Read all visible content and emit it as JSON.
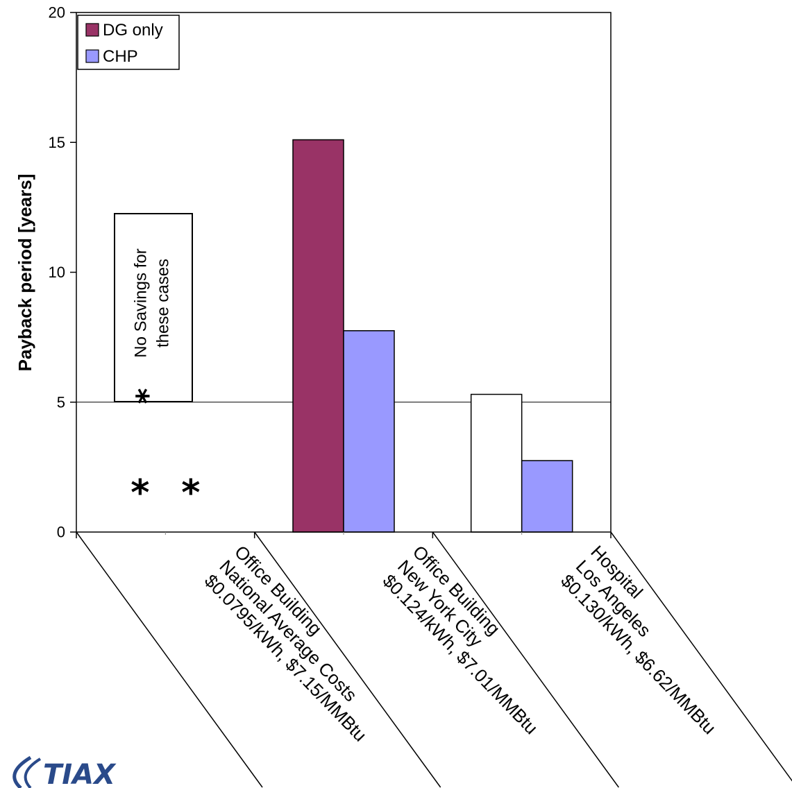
{
  "chart_data": {
    "type": "bar",
    "ylabel": "Payback period [years]",
    "ylim": [
      0,
      20
    ],
    "yticks": [
      0,
      5,
      10,
      15,
      20
    ],
    "grid": "major horizontal line at 5 only",
    "legend_position": "top-left",
    "categories": [
      [
        "Office Building",
        "National Average Costs",
        "$0.0795/kWh, $7.15/MMBtu"
      ],
      [
        "Office Building",
        "New York City",
        "$0.124/kWh, $7.01/MMBtu"
      ],
      [
        "Hospital",
        "Los Angeles",
        "$0.130/kWh, $6.62/MMBtu"
      ]
    ],
    "series": [
      {
        "name": "DG only",
        "color": "#993366",
        "values": [
          null,
          15.1,
          5.3
        ],
        "empty_fill_index": 2
      },
      {
        "name": "CHP",
        "color": "#9999ff",
        "values": [
          null,
          7.75,
          2.75
        ]
      }
    ],
    "no_value_marker": "*",
    "annotation": {
      "marker": "*",
      "lines": [
        "No Savings for",
        "these cases"
      ]
    }
  },
  "logo": {
    "text": "TIAX"
  }
}
